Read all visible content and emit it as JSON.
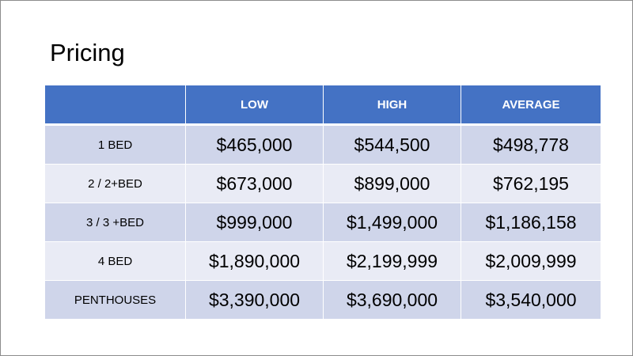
{
  "title": "Pricing",
  "table": {
    "headers": [
      "",
      "LOW",
      "HIGH",
      "AVERAGE"
    ],
    "rows": [
      {
        "label": "1 BED",
        "low": "$465,000",
        "high": "$544,500",
        "average": "$498,778"
      },
      {
        "label": "2 / 2+BED",
        "low": "$673,000",
        "high": "$899,000",
        "average": "$762,195"
      },
      {
        "label": "3 / 3 +BED",
        "low": "$999,000",
        "high": "$1,499,000",
        "average": "$1,186,158"
      },
      {
        "label": "4 BED",
        "low": "$1,890,000",
        "high": "$2,199,999",
        "average": "$2,009,999"
      },
      {
        "label": "PENTHOUSES",
        "low": "$3,390,000",
        "high": "$3,690,000",
        "average": "$3,540,000"
      }
    ]
  },
  "colors": {
    "header_bg": "#4472c4",
    "row_odd_bg": "#cfd5ea",
    "row_even_bg": "#e9ebf5"
  }
}
